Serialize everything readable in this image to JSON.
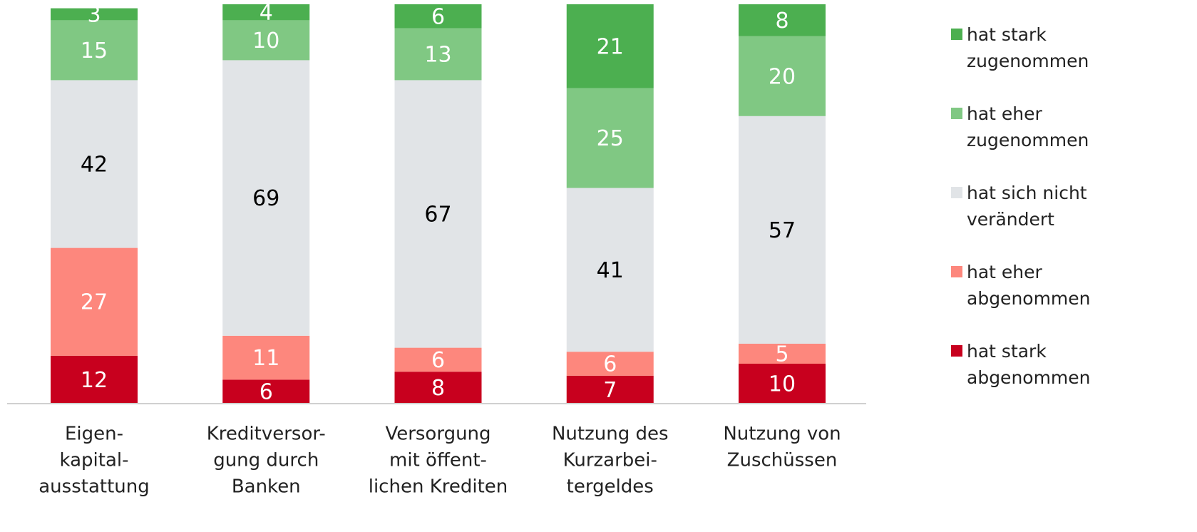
{
  "chart_data": {
    "type": "stacked_bar",
    "categories": [
      [
        "Eigen-",
        "kapital-",
        "ausstattung"
      ],
      [
        "Kreditversor-",
        "gung durch",
        "Banken"
      ],
      [
        "Versorgung",
        "mit öffent-",
        "lichen Krediten"
      ],
      [
        "Nutzung des",
        "Kurzarbei-",
        "tergeldes"
      ],
      [
        "Nutzung von",
        "Zuschüssen"
      ]
    ],
    "series": [
      {
        "name": "hat stark abgenommen",
        "color": "#c8001e",
        "label_color": "#ffffff",
        "values": [
          12,
          6,
          8,
          7,
          10
        ]
      },
      {
        "name": "hat eher abgenommen",
        "color": "#fd877d",
        "label_color": "#ffffff",
        "values": [
          27,
          11,
          6,
          6,
          5
        ]
      },
      {
        "name": "hat sich nicht verändert",
        "color": "#e1e4e7",
        "label_color": "#000000",
        "values": [
          42,
          69,
          67,
          41,
          57
        ]
      },
      {
        "name": "hat eher zugenommen",
        "color": "#80c883",
        "label_color": "#ffffff",
        "values": [
          15,
          10,
          13,
          25,
          20
        ]
      },
      {
        "name": "hat stark zugenommen",
        "color": "#4caf50",
        "label_color": "#ffffff",
        "values": [
          3,
          4,
          6,
          21,
          8
        ]
      }
    ],
    "ylim": [
      0,
      100
    ]
  }
}
